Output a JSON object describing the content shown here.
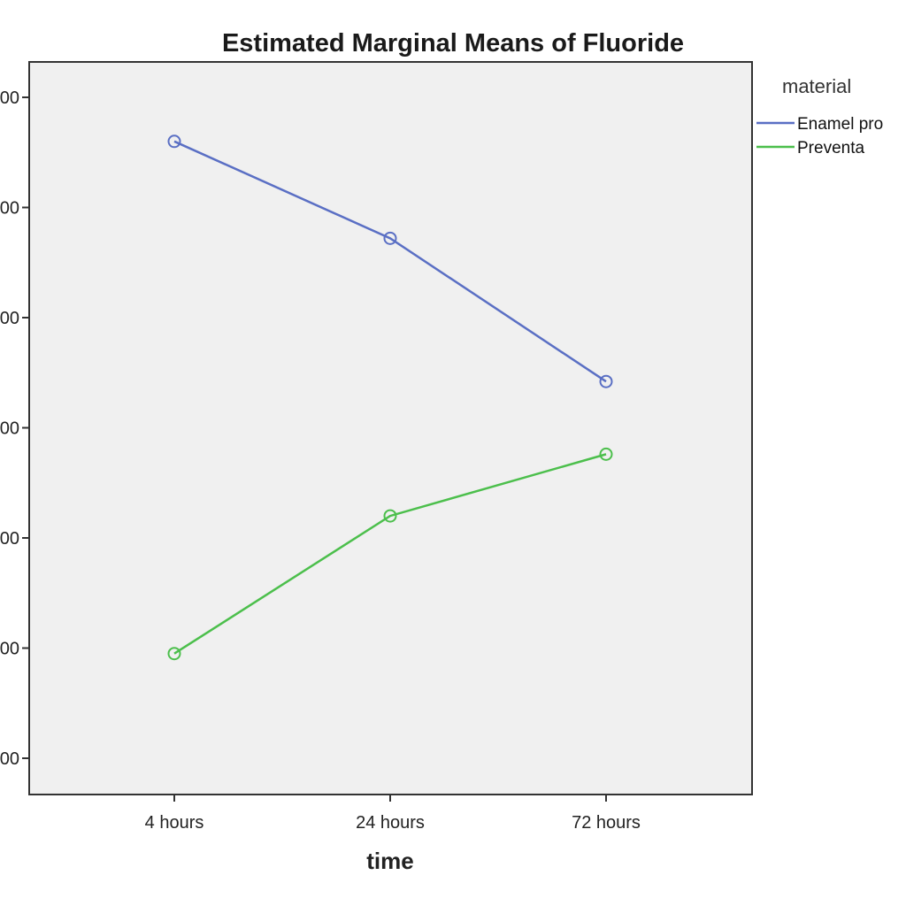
{
  "chart_data": {
    "type": "line",
    "title": "Estimated Marginal Means of Fluoride",
    "xlabel": "time",
    "ylabel": "",
    "categories": [
      "4 hours",
      "24 hours",
      "72 hours"
    ],
    "y_tick_labels": [
      "00",
      "00",
      "00",
      "00",
      "00",
      "00",
      "00"
    ],
    "ylim": [
      0,
      6.5
    ],
    "grid": false,
    "legend": {
      "title": "material",
      "placement": "top-right"
    },
    "series": [
      {
        "name": "Enamel pro",
        "color": "#5a6fc4",
        "values": [
          5.6,
          4.72,
          3.42
        ]
      },
      {
        "name": "Preventa",
        "color": "#4cbf4c",
        "values": [
          0.95,
          2.2,
          2.76
        ]
      }
    ]
  }
}
